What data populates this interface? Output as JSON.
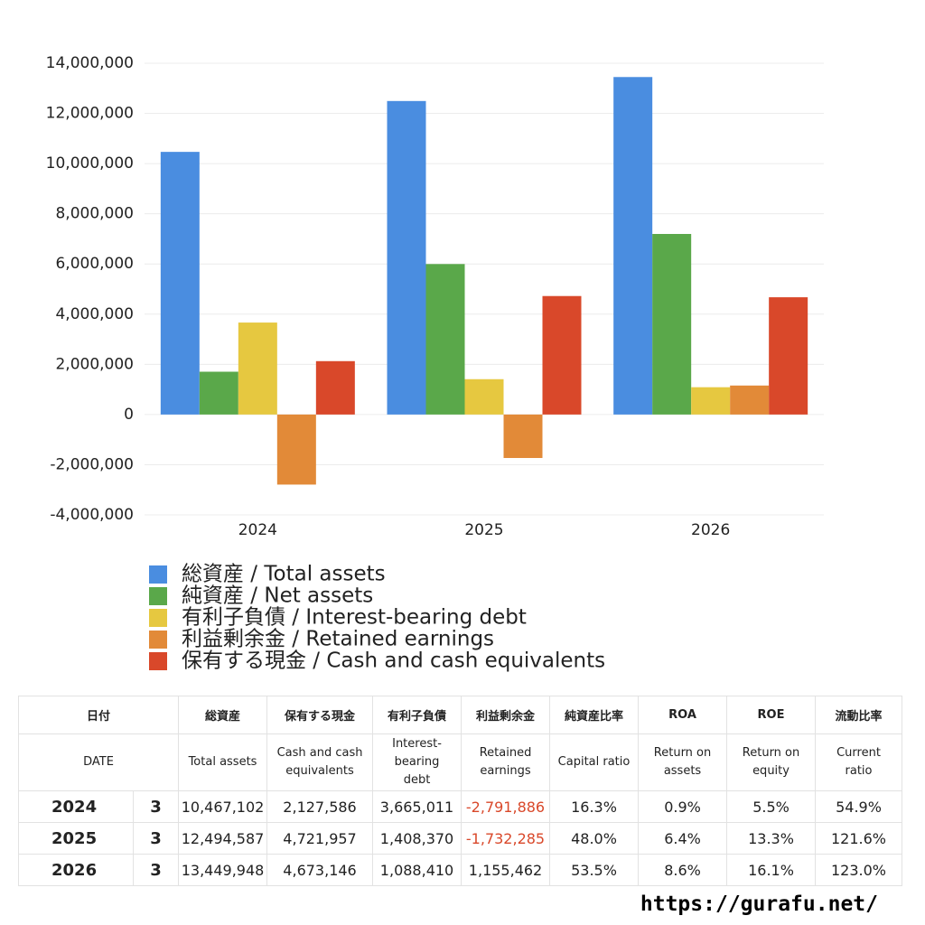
{
  "chart_data": {
    "type": "bar",
    "categories": [
      "2024",
      "2025",
      "2026"
    ],
    "series": [
      {
        "name": "総資産 / Total assets",
        "color": "#4a8de0",
        "values": [
          10467102,
          12494587,
          13449948
        ]
      },
      {
        "name": "純資産 / Net assets",
        "color": "#5aa84a",
        "values": [
          1706000,
          5997000,
          7196000
        ]
      },
      {
        "name": "有利子負債 / Interest-bearing debt",
        "color": "#e6c840",
        "values": [
          3665011,
          1408370,
          1088410
        ]
      },
      {
        "name": "利益剰余金 / Retained earnings",
        "color": "#e28a38",
        "values": [
          -2791886,
          -1732285,
          1155462
        ]
      },
      {
        "name": "保有する現金 /  Cash and cash equivalents",
        "color": "#d9482a",
        "values": [
          2127586,
          4721957,
          4673146
        ]
      }
    ],
    "ylim": [
      -4000000,
      14000000
    ],
    "yticks": [
      {
        "value": -4000000,
        "label": "-4,000,000"
      },
      {
        "value": -2000000,
        "label": "-2,000,000"
      },
      0,
      {
        "value": 2000000,
        "label": "2,000,000"
      },
      {
        "value": 4000000,
        "label": "4,000,000"
      },
      {
        "value": 6000000,
        "label": "6,000,000"
      },
      {
        "value": 8000000,
        "label": "8,000,000"
      },
      {
        "value": 10000000,
        "label": "10,000,000"
      },
      {
        "value": 12000000,
        "label": "12,000,000"
      },
      {
        "value": 14000000,
        "label": "14,000,000"
      }
    ],
    "grid": true
  },
  "table": {
    "header_ja": [
      "日付",
      "総資産",
      "保有する現金",
      "有利子負債",
      "利益剰余金",
      "純資産比率",
      "ROA",
      "ROE",
      "流動比率"
    ],
    "header_en": [
      "DATE",
      "Total assets",
      "Cash and cash\nequivalents",
      "Interest-\nbearing\ndebt",
      "Retained\nearnings",
      "Capital ratio",
      "Return on\nassets",
      "Return on\nequity",
      "Current\nratio"
    ],
    "rows": [
      {
        "date": "2024",
        "month": 3,
        "cells": [
          "10,467,102",
          "2,127,586",
          "3,665,011",
          "-2,791,886",
          "16.3%",
          "0.9%",
          "5.5%",
          "54.9%"
        ]
      },
      {
        "date": "2025",
        "month": 3,
        "cells": [
          "12,494,587",
          "4,721,957",
          "1,408,370",
          "-1,732,285",
          "48.0%",
          "6.4%",
          "13.3%",
          "121.6%"
        ]
      },
      {
        "date": "2026",
        "month": 3,
        "cells": [
          "13,449,948",
          "4,673,146",
          "1,088,410",
          "1,155,462",
          "53.5%",
          "8.6%",
          "16.1%",
          "123.0%"
        ]
      }
    ]
  },
  "footer": "https://gurafu.net/"
}
